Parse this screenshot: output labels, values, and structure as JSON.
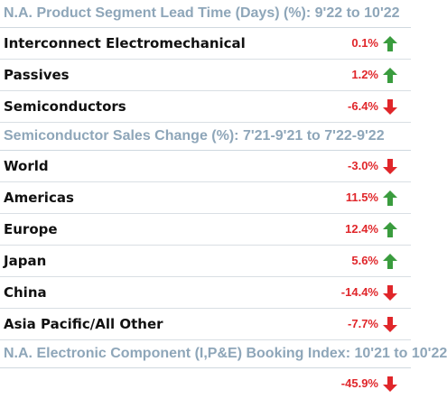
{
  "chart_data": {
    "type": "table",
    "colors": {
      "header": "#8ea6b9",
      "value": "#e0262a",
      "up": "#3a9c3e",
      "down": "#e0262a"
    },
    "sections": [
      {
        "title": "N.A. Product Segment Lead Time (Days) (%): 9'22 to 10'22",
        "rows": [
          {
            "label": "Interconnect Electromechanical",
            "value": "0.1%",
            "direction": "up"
          },
          {
            "label": "Passives",
            "value": "1.2%",
            "direction": "up"
          },
          {
            "label": "Semiconductors",
            "value": "-6.4%",
            "direction": "down"
          }
        ]
      },
      {
        "title": "Semiconductor Sales Change (%): 7'21-9'21 to 7'22-9'22",
        "rows": [
          {
            "label": "World",
            "value": "-3.0%",
            "direction": "down"
          },
          {
            "label": "Americas",
            "value": "11.5%",
            "direction": "up"
          },
          {
            "label": "Europe",
            "value": "12.4%",
            "direction": "up"
          },
          {
            "label": "Japan",
            "value": "5.6%",
            "direction": "up"
          },
          {
            "label": "China",
            "value": "-14.4%",
            "direction": "down"
          },
          {
            "label": "Asia Pacific/All Other",
            "value": "-7.7%",
            "direction": "down"
          }
        ]
      },
      {
        "title": "N.A. Electronic Component (I,P&E) Booking Index: 10'21 to 10'22",
        "rows": [
          {
            "label": "",
            "value": "-45.9%",
            "direction": "down"
          }
        ]
      }
    ]
  }
}
